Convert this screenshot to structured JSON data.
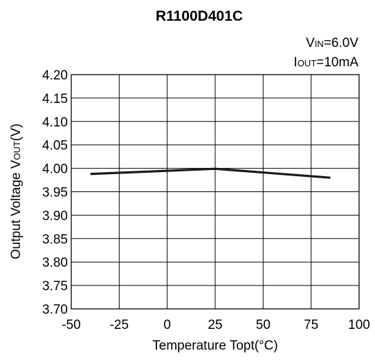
{
  "chart_data": {
    "type": "line",
    "title": "R1100D401C",
    "conditions": {
      "vin": {
        "main": "V",
        "sub": "IN",
        "rest": "=6.0V"
      },
      "iout": {
        "main": "I",
        "sub": "OUT",
        "rest": "=10mA"
      }
    },
    "xlabel": "Temperature Topt(°C)",
    "ylabel": {
      "main": "Output Voltage V",
      "sub": "OUT",
      "rest": "(V)"
    },
    "xlim": [
      -50,
      100
    ],
    "ylim": [
      3.7,
      4.2
    ],
    "xticks": [
      "-50",
      "-25",
      "0",
      "25",
      "50",
      "75",
      "100"
    ],
    "yticks": [
      "4.20",
      "4.15",
      "4.10",
      "4.05",
      "4.00",
      "3.95",
      "3.90",
      "3.85",
      "3.80",
      "3.75",
      "3.70"
    ],
    "grid": true,
    "series": [
      {
        "x": [
          -40,
          25,
          85
        ],
        "y": [
          3.988,
          3.999,
          3.98
        ]
      }
    ]
  }
}
